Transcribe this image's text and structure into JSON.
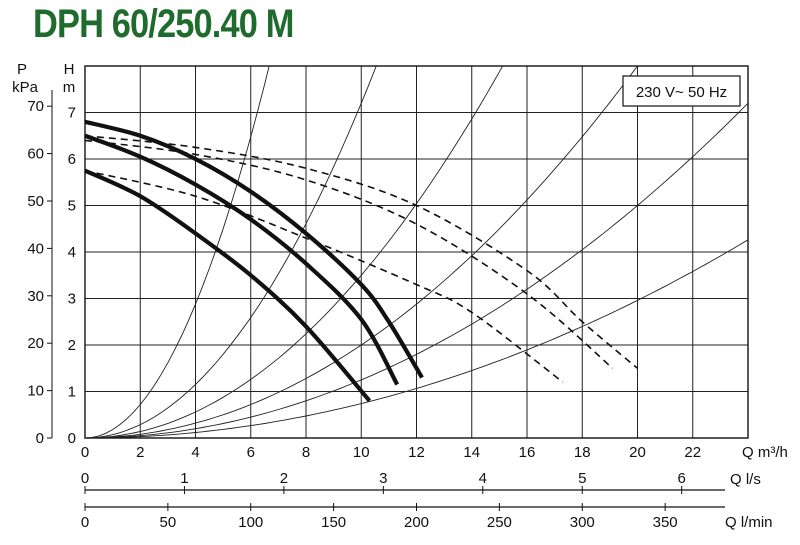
{
  "title": "DPH 60/250.40 M",
  "chart_data": {
    "type": "line",
    "title": "DPH 60/250.40 M",
    "annotation": "230 V~ 50 Hz",
    "axes": {
      "p": {
        "label_top": "P",
        "label_unit": "kPa",
        "range": [
          0,
          70
        ],
        "ticks": [
          "0",
          "10",
          "20",
          "30",
          "40",
          "50",
          "60",
          "70"
        ]
      },
      "h": {
        "label_top": "H",
        "label_unit": "m",
        "range": [
          0,
          8
        ],
        "ticks": [
          "0",
          "1",
          "2",
          "3",
          "4",
          "5",
          "6",
          "7"
        ]
      },
      "q_m3h": {
        "label": "Q m³/h",
        "range": [
          0,
          24
        ],
        "ticks": [
          "0",
          "2",
          "4",
          "6",
          "8",
          "10",
          "12",
          "14",
          "16",
          "18",
          "20",
          "22"
        ]
      },
      "q_ls": {
        "label": "Q l/s",
        "ticks": [
          "0",
          "1",
          "2",
          "3",
          "4",
          "5",
          "6"
        ]
      },
      "q_lmin": {
        "label": "Q l/min",
        "ticks": [
          "0",
          "50",
          "100",
          "150",
          "200",
          "250",
          "300",
          "350"
        ]
      }
    },
    "grid": true,
    "series": [
      {
        "style": "solid",
        "points": [
          [
            0,
            6.8
          ],
          [
            2,
            6.5
          ],
          [
            4,
            6.0
          ],
          [
            6,
            5.3
          ],
          [
            8,
            4.4
          ],
          [
            10,
            3.3
          ],
          [
            11,
            2.5
          ],
          [
            12.2,
            1.3
          ]
        ]
      },
      {
        "style": "solid",
        "points": [
          [
            0,
            6.5
          ],
          [
            2,
            6.05
          ],
          [
            4,
            5.45
          ],
          [
            6,
            4.7
          ],
          [
            8,
            3.75
          ],
          [
            10,
            2.55
          ],
          [
            11.3,
            1.15
          ]
        ]
      },
      {
        "style": "solid",
        "points": [
          [
            0,
            5.75
          ],
          [
            2,
            5.2
          ],
          [
            4,
            4.4
          ],
          [
            6,
            3.5
          ],
          [
            8,
            2.4
          ],
          [
            10.3,
            0.8
          ]
        ]
      },
      {
        "style": "dashed",
        "points": [
          [
            0,
            6.5
          ],
          [
            4,
            6.25
          ],
          [
            8,
            5.8
          ],
          [
            12,
            5.0
          ],
          [
            16,
            3.6
          ],
          [
            18,
            2.5
          ],
          [
            20,
            1.5
          ]
        ]
      },
      {
        "style": "dashed",
        "points": [
          [
            0,
            6.4
          ],
          [
            4,
            6.1
          ],
          [
            8,
            5.55
          ],
          [
            12,
            4.6
          ],
          [
            16,
            3.1
          ],
          [
            19.1,
            1.5
          ]
        ]
      },
      {
        "style": "dashed",
        "points": [
          [
            0,
            5.75
          ],
          [
            4,
            5.2
          ],
          [
            8,
            4.3
          ],
          [
            12,
            3.3
          ],
          [
            14,
            2.7
          ],
          [
            17.3,
            1.2
          ]
        ]
      }
    ],
    "system_curve_coefficients": [
      0.18,
      0.072,
      0.035,
      0.02,
      0.0125,
      0.0074
    ]
  }
}
